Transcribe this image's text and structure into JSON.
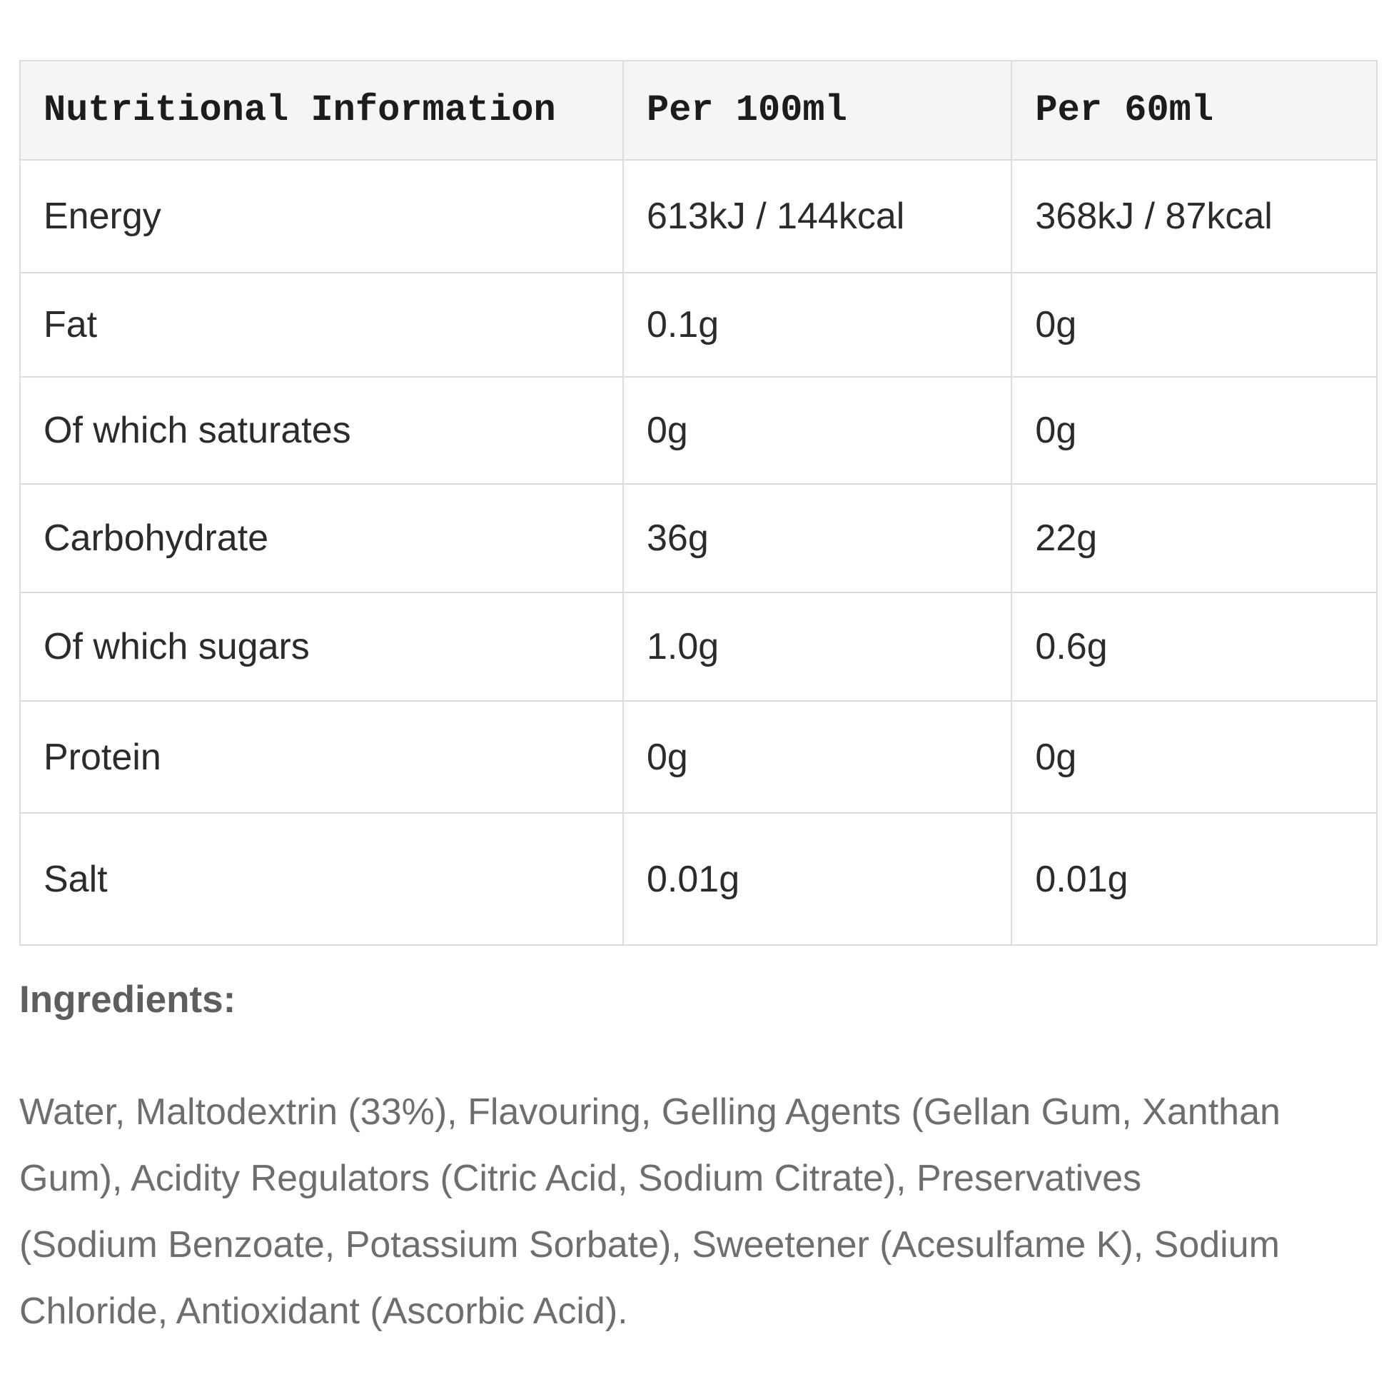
{
  "colors": {
    "border": "#dcdcdc",
    "header_bg": "#f6f5f3",
    "header_text": "#1c1c1c",
    "body_text": "#2b2b2b",
    "muted_text": "#6e6e6e",
    "heading_text": "#5e5e5e",
    "page_bg": "#ffffff"
  },
  "nutrition_table": {
    "headers": {
      "col1": "Nutritional Information",
      "col2": "Per 100ml",
      "col3": "Per 60ml"
    },
    "rows": [
      {
        "label": "Energy",
        "per_100ml": "613kJ / 144kcal",
        "per_60ml": "368kJ / 87kcal"
      },
      {
        "label": "Fat",
        "per_100ml": "0.1g",
        "per_60ml": "0g"
      },
      {
        "label": "Of which saturates",
        "per_100ml": "0g",
        "per_60ml": "0g"
      },
      {
        "label": "Carbohydrate",
        "per_100ml": "36g",
        "per_60ml": "22g"
      },
      {
        "label": "Of which sugars",
        "per_100ml": "1.0g",
        "per_60ml": "0.6g"
      },
      {
        "label": "Protein",
        "per_100ml": "0g",
        "per_60ml": "0g"
      },
      {
        "label": "Salt",
        "per_100ml": "0.01g",
        "per_60ml": "0.01g"
      }
    ]
  },
  "ingredients": {
    "heading": "Ingredients:",
    "lines": [
      "Water, Maltodextrin (33%), Flavouring, Gelling Agents (Gellan Gum, Xanthan",
      "Gum), Acidity Regulators (Citric Acid, Sodium Citrate), Preservatives",
      "(Sodium Benzoate, Potassium Sorbate), Sweetener (Acesulfame K), Sodium",
      "Chloride, Antioxidant (Ascorbic Acid)."
    ],
    "full_text": "Water, Maltodextrin (33%), Flavouring, Gelling Agents (Gellan Gum, Xanthan Gum), Acidity Regulators (Citric Acid, Sodium Citrate), Preservatives (Sodium Benzoate, Potassium Sorbate), Sweetener (Acesulfame K), Sodium Chloride, Antioxidant (Ascorbic Acid)."
  }
}
